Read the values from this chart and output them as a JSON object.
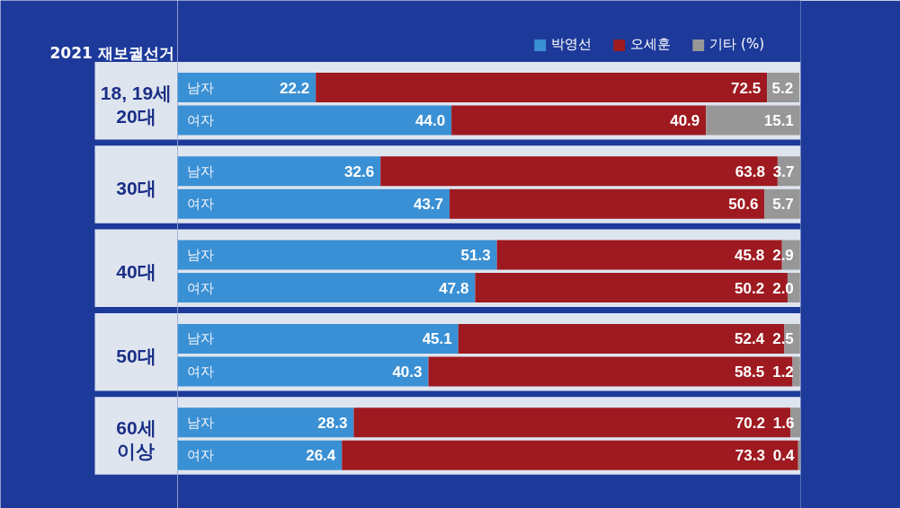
{
  "chart_data": {
    "type": "bar",
    "orientation": "horizontal",
    "stacked": true,
    "title": "2021 재보궐선거",
    "categories": [
      "남자",
      "여자",
      "남자",
      "여자",
      "남자",
      "여자",
      "남자",
      "여자",
      "남자",
      "여자"
    ],
    "annotations": [
      "18, 19세 20대",
      "30대",
      "40대",
      "50대",
      "60세 이상"
    ],
    "series": [
      {
        "name": "박영선",
        "color": "#3a90d4",
        "values": [
          22.2,
          44.0,
          32.6,
          43.7,
          51.3,
          47.8,
          45.1,
          40.3,
          28.3,
          26.4
        ],
        "value_labels": [
          "22.2",
          "44.0",
          "32.6",
          "43.7",
          "51.3",
          "47.8",
          "45.1",
          "40.3",
          "28.3",
          "26.4"
        ]
      },
      {
        "name": "오세훈",
        "color": "#9e1a20",
        "values": [
          72.5,
          40.9,
          63.8,
          50.6,
          45.8,
          50.2,
          52.4,
          58.5,
          70.2,
          73.3
        ],
        "value_labels": [
          "72.5",
          "40.9",
          "63.8",
          "50.6",
          "45.8",
          "50.2",
          "52.4",
          "58.5",
          "70.2",
          "73.3"
        ]
      },
      {
        "name": "기타 (%)",
        "color": "#979797",
        "values": [
          5.2,
          15.1,
          3.7,
          5.7,
          2.9,
          2.0,
          2.5,
          1.2,
          1.6,
          0.4
        ],
        "value_labels": [
          "5.2",
          "15.1",
          "3.7",
          "5.7",
          "2.9",
          "2.0",
          "2.5",
          "1.2",
          "1.6",
          "0.4"
        ]
      }
    ],
    "xlim": [
      0,
      100.1
    ],
    "tick_labels": false,
    "legend": "top right"
  }
}
